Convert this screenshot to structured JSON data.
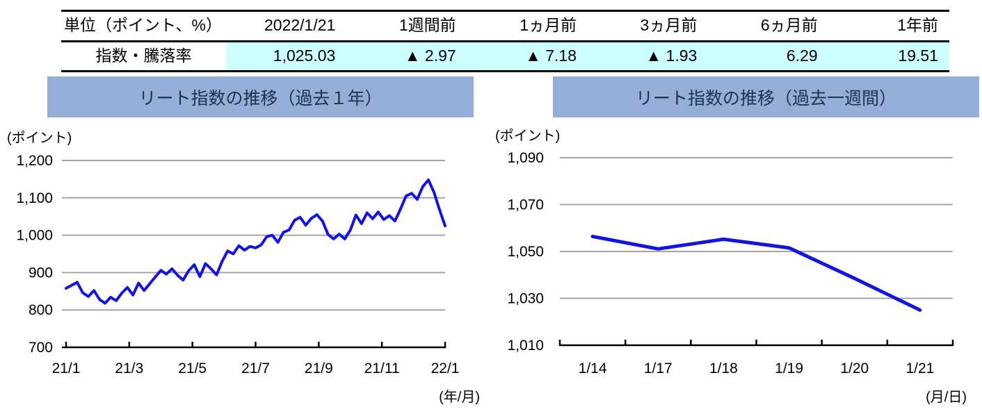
{
  "colors": {
    "banner_bg": "#95AED8",
    "highlight_bg": "#CCFFFF",
    "line": "#1414E0",
    "gridline": "#A6A6A6",
    "axis": "#000000"
  },
  "table": {
    "header": [
      "単位（ポイント、%）",
      "2022/1/21",
      "1週間前",
      "1ヵ月前",
      "3ヵ月前",
      "6ヵ月前",
      "1年前"
    ],
    "rows": [
      {
        "label": "指数・騰落率",
        "values": [
          "1,025.03",
          "▲ 2.97",
          "▲ 7.18",
          "▲ 1.93",
          "6.29",
          "19.51"
        ]
      }
    ]
  },
  "chart_data": [
    {
      "type": "line",
      "title": "リート指数の推移（過去１年）",
      "unit_label": "(ポイント)",
      "x_axis_caption": "(年/月)",
      "x_mode": "edge",
      "x_ticks": [
        "21/1",
        "21/3",
        "21/5",
        "21/7",
        "21/9",
        "21/11",
        "22/1"
      ],
      "ylim": [
        700,
        1200
      ],
      "y_ticks": [
        700,
        800,
        900,
        1000,
        1100,
        1200
      ],
      "grid": true,
      "legend": "none",
      "line_color": "#1414E0",
      "series": [
        {
          "name": "リート指数",
          "values": [
            858,
            866,
            874,
            846,
            836,
            852,
            828,
            818,
            834,
            825,
            845,
            860,
            840,
            872,
            852,
            870,
            888,
            906,
            896,
            910,
            893,
            880,
            905,
            921,
            889,
            924,
            910,
            894,
            930,
            958,
            950,
            972,
            960,
            970,
            966,
            974,
            996,
            1000,
            981,
            1008,
            1014,
            1040,
            1048,
            1027,
            1045,
            1055,
            1038,
            1002,
            990,
            1003,
            990,
            1014,
            1054,
            1031,
            1060,
            1044,
            1062,
            1042,
            1052,
            1038,
            1070,
            1105,
            1112,
            1096,
            1130,
            1148,
            1115,
            1068,
            1025
          ]
        }
      ]
    },
    {
      "type": "line",
      "title": "リート指数の推移（過去一週間）",
      "unit_label": "(ポイント)",
      "x_axis_caption": "(月/日)",
      "x_mode": "center",
      "x_ticks": [
        "1/14",
        "1/17",
        "1/18",
        "1/19",
        "1/20",
        "1/21"
      ],
      "ylim": [
        1010,
        1090
      ],
      "y_ticks": [
        1010,
        1030,
        1050,
        1070,
        1090
      ],
      "grid": true,
      "legend": "none",
      "line_color": "#1414E0",
      "series": [
        {
          "name": "リート指数",
          "values": [
            1056.4,
            1051.1,
            1055.2,
            1051.5,
            1038.5,
            1025.0
          ]
        }
      ]
    }
  ]
}
